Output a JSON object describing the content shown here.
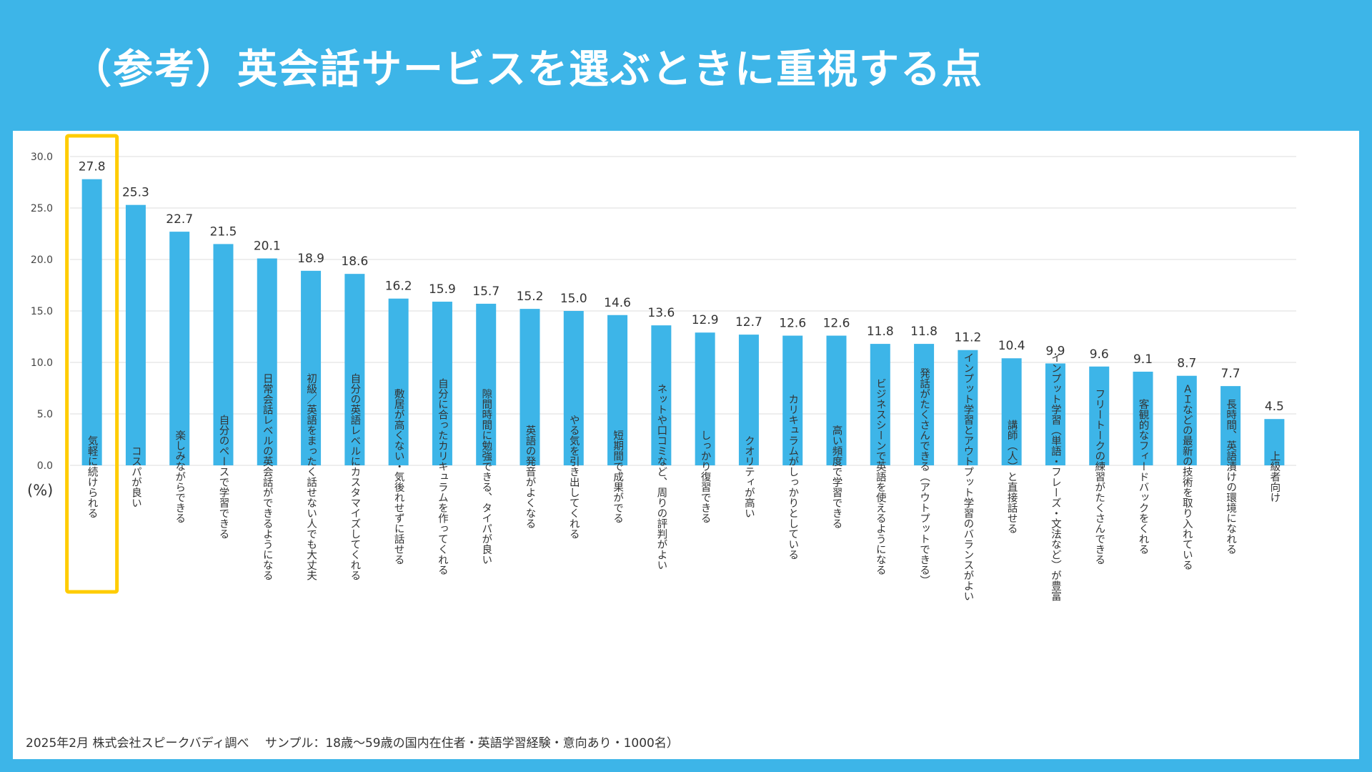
{
  "title": "（参考）英会話サービスを選ぶときに重視する点",
  "unit_label": "(%)",
  "footnote": "2025年2月 株式会社スピークバディ調べ　 サンプル：18歳〜59歳の国内在住者・英語学習経験・意向あり・1000名）",
  "colors": {
    "background": "#3db5e8",
    "bar": "#3db5e8",
    "highlight": "#ffcc00",
    "grid": "#dddddd"
  },
  "chart_data": {
    "type": "bar",
    "ylim": [
      0,
      30
    ],
    "yticks": [
      "0.0",
      "5.0",
      "10.0",
      "15.0",
      "20.0",
      "25.0",
      "30.0"
    ],
    "grid": true,
    "highlighted_index": 0,
    "categories": [
      "気軽に続けられる",
      "コスパが良い",
      "楽しみながらできる",
      "自分のペースで学習できる",
      "日常会話レベルの英会話ができるようになる",
      "初級／英語をまったく話せない人でも大丈夫",
      "自分の英語レベルにカスタマイズしてくれる",
      "敷居が高くない・気後れせずに話せる",
      "自分に合ったカリキュラムを作ってくれる",
      "隙間時間に勉強できる、タイパが良い",
      "英語の発音がよくなる",
      "やる気を引き出してくれる",
      "短期間で成果がでる",
      "ネットや口コミなど、周りの評判がよい",
      "しっかり復習できる",
      "クオリティが高い",
      "カリキュラムがしっかりとしている",
      "高い頻度で学習できる",
      "ビジネスシーンで英語を使えるようになる",
      "発話がたくさんできる（アウトプットできる）",
      "インプット学習とアウトプット学習のバランスがよい",
      "講師（人）と直接話せる",
      "インプット学習（単語・フレーズ・文法など）が豊富",
      "フリートークの練習がたくさんできる",
      "客観的なフィードバックをくれる",
      "ＡＩなどの最新の技術を取り入れている",
      "長時間、英語漬けの環境になれる",
      "上級者向け"
    ],
    "values": [
      27.8,
      25.3,
      22.7,
      21.5,
      20.1,
      18.9,
      18.6,
      16.2,
      15.9,
      15.7,
      15.2,
      15.0,
      14.6,
      13.6,
      12.9,
      12.7,
      12.6,
      12.6,
      11.8,
      11.8,
      11.2,
      10.4,
      9.9,
      9.6,
      9.1,
      8.7,
      7.7,
      4.5
    ],
    "value_labels": [
      "27.8",
      "25.3",
      "22.7",
      "21.5",
      "20.1",
      "18.9",
      "18.6",
      "16.2",
      "15.9",
      "15.7",
      "15.2",
      "15.0",
      "14.6",
      "13.6",
      "12.9",
      "12.7",
      "12.6",
      "12.6",
      "11.8",
      "11.8",
      "11.2",
      "10.4",
      "9.9",
      "9.6",
      "9.1",
      "8.7",
      "7.7",
      "4.5"
    ]
  }
}
